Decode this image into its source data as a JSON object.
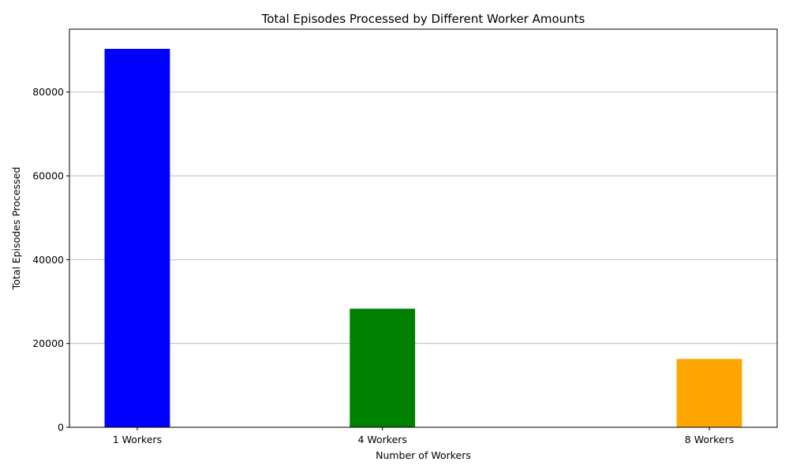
{
  "chart_data": {
    "type": "bar",
    "title": "Total Episodes Processed by Different Worker Amounts",
    "xlabel": "Number of Workers",
    "ylabel": "Total Episodes Processed",
    "categories": [
      "1 Workers",
      "4 Workers",
      "8 Workers"
    ],
    "x": [
      1,
      4,
      8
    ],
    "values": [
      90300,
      28300,
      16300
    ],
    "colors": [
      "#0000ff",
      "#008000",
      "#ffa500"
    ],
    "xlim": [
      0.17,
      8.83
    ],
    "ylim": [
      0,
      95000
    ],
    "yticks": [
      0,
      20000,
      40000,
      60000,
      80000
    ],
    "ytick_labels": [
      "0",
      "20000",
      "40000",
      "60000",
      "80000"
    ],
    "grid": "y",
    "legend": "none"
  }
}
